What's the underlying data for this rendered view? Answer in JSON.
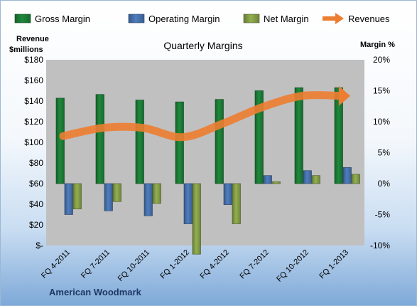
{
  "chart_data": {
    "type": "bar",
    "title": "Quarterly Margins",
    "company": "American Woodmark",
    "y_left_label_line1": "Revenue",
    "y_left_label_line2": "$millions",
    "y_right_label": "Margin %",
    "categories": [
      "FQ 4-2011",
      "FQ 7-2011",
      "FQ 10-2011",
      "FQ 1-2012",
      "FQ 4-2012",
      "FQ 7-2012",
      "FQ 10-2012",
      "FQ 1-2013"
    ],
    "left_axis": {
      "min": 0,
      "max": 180,
      "step": 20,
      "tick_labels": [
        "$-",
        "$20",
        "$40",
        "$60",
        "$80",
        "$100",
        "$120",
        "$140",
        "$160",
        "$180"
      ]
    },
    "right_axis": {
      "min": -10,
      "max": 20,
      "step": 5,
      "tick_labels": [
        "-10%",
        "-5%",
        "0%",
        "5%",
        "10%",
        "15%",
        "20%"
      ]
    },
    "series": [
      {
        "name": "Gross Margin",
        "type": "bar",
        "axis": "right",
        "color": "#1f8a3c",
        "values": [
          13.8,
          14.4,
          13.5,
          13.2,
          13.6,
          15.0,
          15.5,
          15.5
        ]
      },
      {
        "name": "Operating Margin",
        "type": "bar",
        "axis": "right",
        "color": "#4f7ec0",
        "values": [
          -5.0,
          -4.4,
          -5.2,
          -6.5,
          -3.4,
          1.3,
          2.1,
          2.6
        ]
      },
      {
        "name": "Net Margin",
        "type": "bar",
        "axis": "right",
        "color": "#93b04f",
        "values": [
          -4.1,
          -2.9,
          -3.2,
          -11.4,
          -6.5,
          0.3,
          1.3,
          1.5
        ]
      },
      {
        "name": "Revenues",
        "type": "line",
        "axis": "left",
        "color": "#ed7d31",
        "values": [
          106,
          114,
          114,
          105,
          118,
          134,
          145,
          145
        ]
      }
    ],
    "grid": false,
    "legend_position": "top",
    "plot_background": "#c0c0c0"
  }
}
